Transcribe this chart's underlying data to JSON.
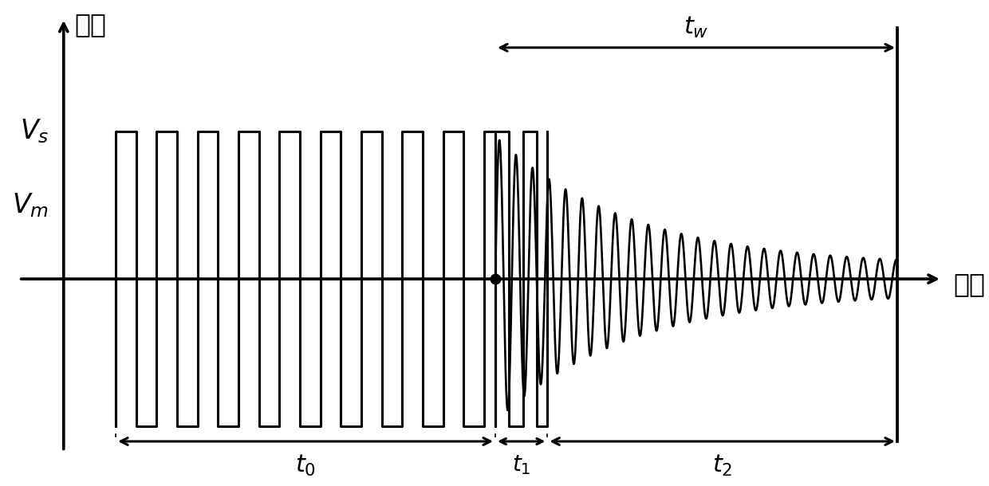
{
  "background_color": "#ffffff",
  "xlabel": "时间",
  "ylabel": "幅値",
  "xlim": [
    -0.8,
    12.0
  ],
  "ylim": [
    -2.0,
    2.8
  ],
  "line_color": "#000000",
  "line_width": 2.2,
  "Vs": 1.5,
  "Vm": 0.75,
  "t0_start": 0.7,
  "t0_end": 5.8,
  "t1_end": 6.5,
  "t2_end": 11.2,
  "sweep_period_t0": 0.55,
  "sweep_period_t1": 0.37,
  "decay_tau": 1.8,
  "decay_freq": 4.5,
  "amp_init": 1.45,
  "amp_final": 0.13,
  "font_size_labels": 24,
  "font_size_annotations": 22
}
